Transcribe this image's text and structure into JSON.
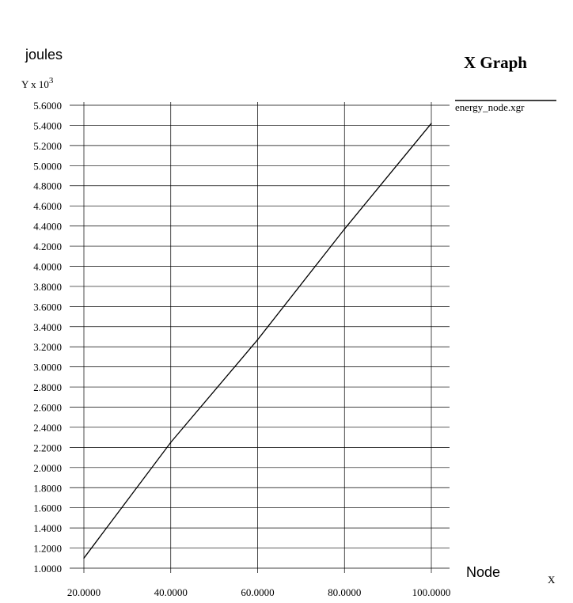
{
  "chart_data": {
    "type": "line",
    "title": "X Graph",
    "ylabel": "joules",
    "xlabel": "Node",
    "x_scale_label": "X",
    "y_scale_label": "Y x 10",
    "y_scale_exponent": "3",
    "xlim": [
      20,
      100
    ],
    "ylim": [
      1.0,
      5.6
    ],
    "x_ticks": [
      "20.0000",
      "40.0000",
      "60.0000",
      "80.0000",
      "100.0000"
    ],
    "y_ticks": [
      "1.0000",
      "1.2000",
      "1.4000",
      "1.6000",
      "1.8000",
      "2.0000",
      "2.2000",
      "2.4000",
      "2.6000",
      "2.8000",
      "3.0000",
      "3.2000",
      "3.4000",
      "3.6000",
      "3.8000",
      "4.0000",
      "4.2000",
      "4.4000",
      "4.6000",
      "4.8000",
      "5.0000",
      "5.2000",
      "5.4000",
      "5.6000"
    ],
    "grid": true,
    "legend_position": "right",
    "series": [
      {
        "name": "energy_node.xgr",
        "color": "#000000",
        "x": [
          20,
          40,
          60,
          80,
          100
        ],
        "y": [
          1.1,
          2.25,
          3.27,
          4.37,
          5.42
        ]
      }
    ]
  }
}
